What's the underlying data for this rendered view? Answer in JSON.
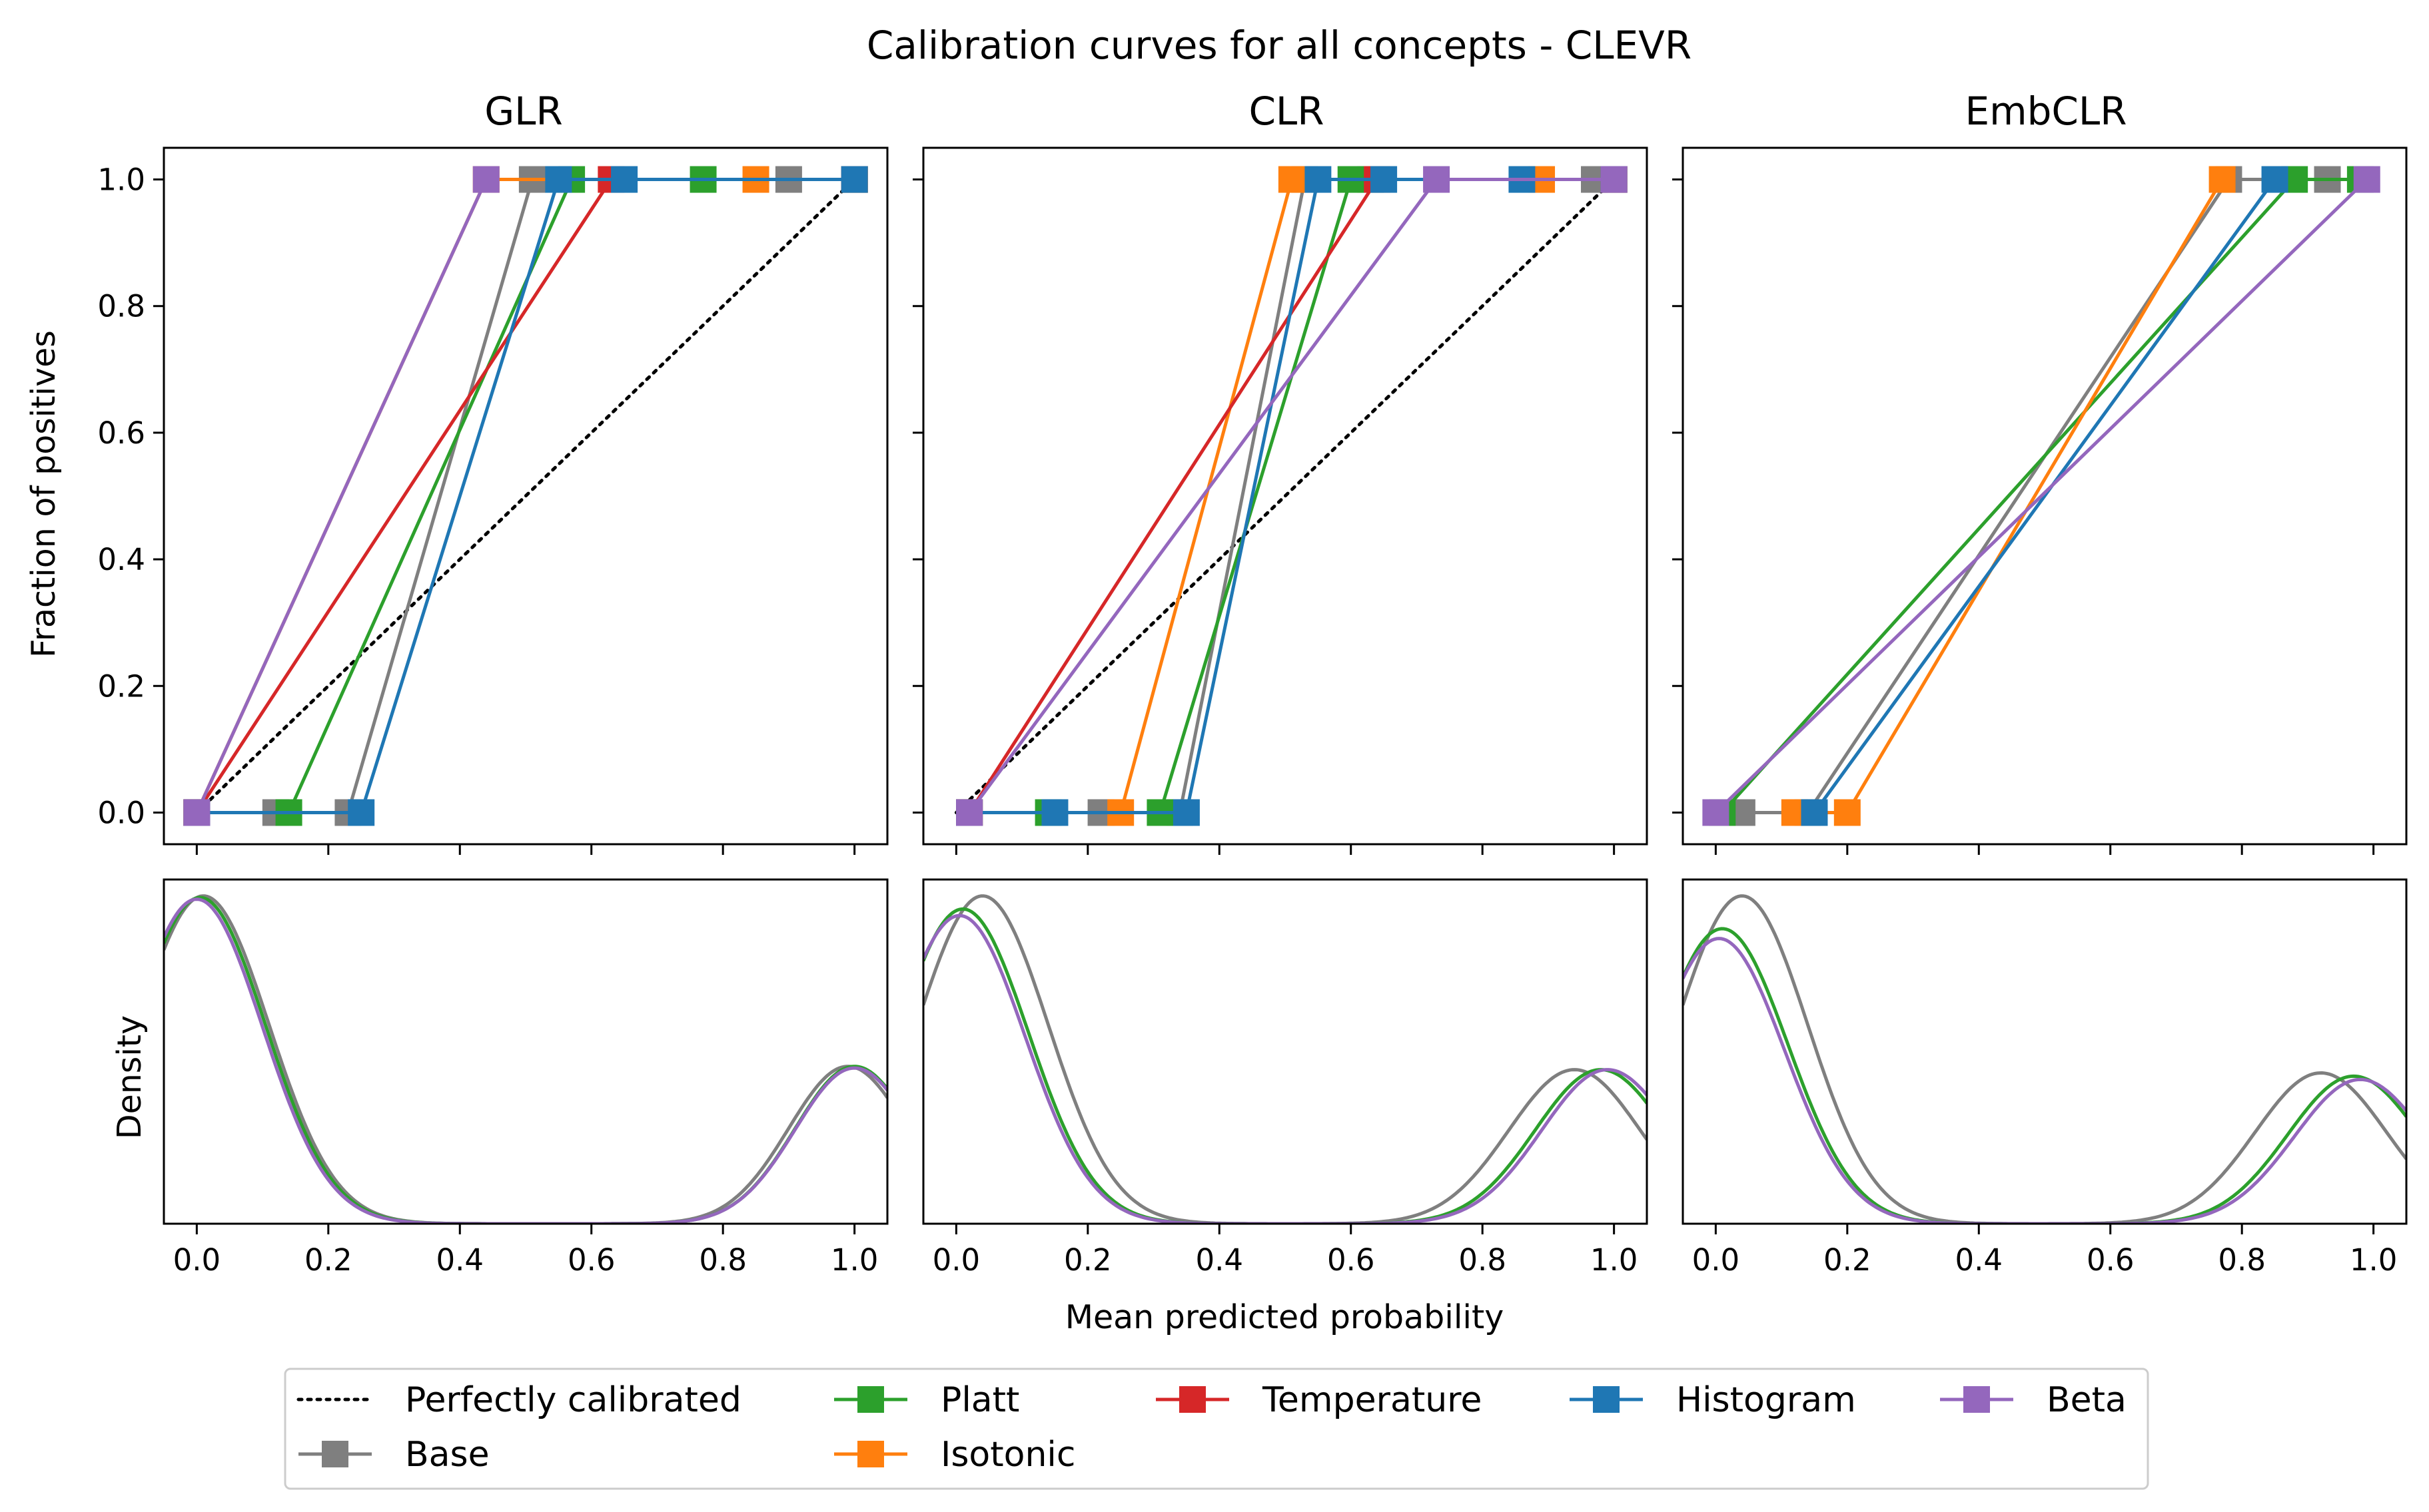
{
  "figure": {
    "title": "Calibration curves for all concepts - CLEVR",
    "xlabel": "Mean predicted probability",
    "ylabel_top": "Fraction of positives",
    "ylabel_bottom": "Density"
  },
  "legend": {
    "placement": "bottom-center",
    "entries": [
      {
        "id": "perfect",
        "label": "Perfectly calibrated",
        "color": "#000000",
        "style": "dotted",
        "marker": "none"
      },
      {
        "id": "base",
        "label": "Base",
        "color": "#7f7f7f",
        "style": "solid",
        "marker": "square"
      },
      {
        "id": "platt",
        "label": "Platt",
        "color": "#2ca02c",
        "style": "solid",
        "marker": "square"
      },
      {
        "id": "isotonic",
        "label": "Isotonic",
        "color": "#ff7f0e",
        "style": "solid",
        "marker": "square"
      },
      {
        "id": "temperature",
        "label": "Temperature",
        "color": "#d62728",
        "style": "solid",
        "marker": "square"
      },
      {
        "id": "histogram",
        "label": "Histogram",
        "color": "#1f77b4",
        "style": "solid",
        "marker": "square"
      },
      {
        "id": "beta",
        "label": "Beta",
        "color": "#9467bd",
        "style": "solid",
        "marker": "square"
      }
    ]
  },
  "chart_data": [
    {
      "type": "line",
      "title": "GLR",
      "xlabel": "Mean predicted probability",
      "ylabel": "Fraction of positives",
      "xlim": [
        -0.05,
        1.05
      ],
      "ylim": [
        -0.05,
        1.05
      ],
      "xticks": [
        "0.0",
        "0.2",
        "0.4",
        "0.6",
        "0.8",
        "1.0"
      ],
      "yticks": [
        "0.0",
        "0.2",
        "0.4",
        "0.6",
        "0.8",
        "1.0"
      ],
      "grid": false,
      "series": [
        {
          "name": "Perfectly calibrated",
          "color": "#000000",
          "style": "dotted",
          "x": [
            0,
            1
          ],
          "y": [
            0,
            1
          ],
          "markers": false
        },
        {
          "name": "Base",
          "color": "#7f7f7f",
          "x": [
            0.0,
            0.12,
            0.23,
            0.51,
            0.9,
            1.0
          ],
          "y": [
            0,
            0,
            0,
            1,
            1,
            1
          ]
        },
        {
          "name": "Platt",
          "color": "#2ca02c",
          "x": [
            0.0,
            0.14,
            0.57,
            0.77,
            1.0
          ],
          "y": [
            0,
            0,
            1,
            1,
            1
          ]
        },
        {
          "name": "Isotonic",
          "color": "#ff7f0e",
          "x": [
            0.0,
            0.44,
            0.85,
            1.0
          ],
          "y": [
            0,
            1,
            1,
            1
          ]
        },
        {
          "name": "Temperature",
          "color": "#d62728",
          "x": [
            0.0,
            0.63,
            1.0
          ],
          "y": [
            0,
            1,
            1
          ]
        },
        {
          "name": "Histogram",
          "color": "#1f77b4",
          "x": [
            0.0,
            0.25,
            0.55,
            0.65,
            1.0
          ],
          "y": [
            0,
            0,
            1,
            1,
            1
          ]
        },
        {
          "name": "Beta",
          "color": "#9467bd",
          "x": [
            0.0,
            0.44
          ],
          "y": [
            0,
            1
          ]
        }
      ]
    },
    {
      "type": "line",
      "title": "CLR",
      "xlim": [
        -0.05,
        1.05
      ],
      "ylim": [
        -0.05,
        1.05
      ],
      "xticks": [
        "0.0",
        "0.2",
        "0.4",
        "0.6",
        "0.8",
        "1.0"
      ],
      "grid": false,
      "series": [
        {
          "name": "Perfectly calibrated",
          "color": "#000000",
          "style": "dotted",
          "x": [
            0,
            1
          ],
          "y": [
            0,
            1
          ],
          "markers": false
        },
        {
          "name": "Base",
          "color": "#7f7f7f",
          "x": [
            0.02,
            0.22,
            0.34,
            0.53,
            0.97
          ],
          "y": [
            0,
            0,
            0,
            1,
            1
          ]
        },
        {
          "name": "Platt",
          "color": "#2ca02c",
          "x": [
            0.02,
            0.14,
            0.31,
            0.6,
            0.63,
            1.0
          ],
          "y": [
            0,
            0,
            0,
            1,
            1,
            1
          ]
        },
        {
          "name": "Isotonic",
          "color": "#ff7f0e",
          "x": [
            0.02,
            0.25,
            0.51,
            0.89,
            1.0
          ],
          "y": [
            0,
            0,
            1,
            1,
            1
          ]
        },
        {
          "name": "Temperature",
          "color": "#d62728",
          "x": [
            0.02,
            0.64,
            1.0
          ],
          "y": [
            0,
            1,
            1
          ]
        },
        {
          "name": "Histogram",
          "color": "#1f77b4",
          "x": [
            0.02,
            0.15,
            0.35,
            0.55,
            0.65,
            0.86,
            1.0
          ],
          "y": [
            0,
            0,
            0,
            1,
            1,
            1,
            1
          ]
        },
        {
          "name": "Beta",
          "color": "#9467bd",
          "x": [
            0.02,
            0.73,
            1.0
          ],
          "y": [
            0,
            1,
            1
          ]
        }
      ]
    },
    {
      "type": "line",
      "title": "EmbCLR",
      "xlim": [
        -0.05,
        1.05
      ],
      "ylim": [
        -0.05,
        1.05
      ],
      "xticks": [
        "0.0",
        "0.2",
        "0.4",
        "0.6",
        "0.8",
        "1.0"
      ],
      "grid": false,
      "series": [
        {
          "name": "Base",
          "color": "#7f7f7f",
          "x": [
            0.04,
            0.14,
            0.78,
            0.93
          ],
          "y": [
            0,
            0,
            1,
            1
          ]
        },
        {
          "name": "Platt",
          "color": "#2ca02c",
          "x": [
            0.01,
            0.88,
            0.98
          ],
          "y": [
            0,
            1,
            1
          ]
        },
        {
          "name": "Isotonic",
          "color": "#ff7f0e",
          "x": [
            0.12,
            0.2,
            0.77
          ],
          "y": [
            0,
            0,
            1
          ]
        },
        {
          "name": "Histogram",
          "color": "#1f77b4",
          "x": [
            0.15,
            0.85
          ],
          "y": [
            0,
            1
          ]
        },
        {
          "name": "Beta",
          "color": "#9467bd",
          "x": [
            0.0,
            0.99
          ],
          "y": [
            0,
            1
          ]
        }
      ]
    },
    {
      "type": "area",
      "subtype": "density",
      "ylabel": "Density",
      "xlabel": "",
      "xlim": [
        -0.05,
        1.05
      ],
      "ylim": [
        0,
        1.05
      ],
      "xticks": [
        "0.0",
        "0.2",
        "0.4",
        "0.6",
        "0.8",
        "1.0"
      ],
      "series": [
        {
          "name": "Base",
          "color": "#7f7f7f",
          "peak1_x": 0.01,
          "peak1_h": 1.0,
          "peak1_w": 0.1,
          "peak2_x": 0.99,
          "peak2_h": 0.48,
          "peak2_w": 0.09
        },
        {
          "name": "Platt",
          "color": "#2ca02c",
          "peak1_x": 0.005,
          "peak1_h": 0.995,
          "peak1_w": 0.1,
          "peak2_x": 1.0,
          "peak2_h": 0.48,
          "peak2_w": 0.09
        },
        {
          "name": "Beta",
          "color": "#9467bd",
          "peak1_x": 0.0,
          "peak1_h": 0.99,
          "peak1_w": 0.1,
          "peak2_x": 1.0,
          "peak2_h": 0.475,
          "peak2_w": 0.09
        }
      ]
    },
    {
      "type": "area",
      "subtype": "density",
      "xlabel": "Mean predicted probability",
      "xlim": [
        -0.05,
        1.05
      ],
      "ylim": [
        0,
        1.05
      ],
      "xticks": [
        "0.0",
        "0.2",
        "0.4",
        "0.6",
        "0.8",
        "1.0"
      ],
      "series": [
        {
          "name": "Base",
          "color": "#7f7f7f",
          "peak1_x": 0.04,
          "peak1_h": 1.0,
          "peak1_w": 0.1,
          "peak2_x": 0.94,
          "peak2_h": 0.47,
          "peak2_w": 0.1
        },
        {
          "name": "Platt",
          "color": "#2ca02c",
          "peak1_x": 0.01,
          "peak1_h": 0.96,
          "peak1_w": 0.1,
          "peak2_x": 0.98,
          "peak2_h": 0.47,
          "peak2_w": 0.1
        },
        {
          "name": "Beta",
          "color": "#9467bd",
          "peak1_x": 0.005,
          "peak1_h": 0.94,
          "peak1_w": 0.1,
          "peak2_x": 0.99,
          "peak2_h": 0.47,
          "peak2_w": 0.1
        }
      ]
    },
    {
      "type": "area",
      "subtype": "density",
      "xlim": [
        -0.05,
        1.05
      ],
      "ylim": [
        0,
        1.05
      ],
      "xticks": [
        "0.0",
        "0.2",
        "0.4",
        "0.6",
        "0.8",
        "1.0"
      ],
      "series": [
        {
          "name": "Base",
          "color": "#7f7f7f",
          "peak1_x": 0.04,
          "peak1_h": 1.0,
          "peak1_w": 0.1,
          "peak2_x": 0.92,
          "peak2_h": 0.46,
          "peak2_w": 0.1
        },
        {
          "name": "Platt",
          "color": "#2ca02c",
          "peak1_x": 0.01,
          "peak1_h": 0.9,
          "peak1_w": 0.1,
          "peak2_x": 0.97,
          "peak2_h": 0.45,
          "peak2_w": 0.1
        },
        {
          "name": "Beta",
          "color": "#9467bd",
          "peak1_x": 0.005,
          "peak1_h": 0.87,
          "peak1_w": 0.1,
          "peak2_x": 0.98,
          "peak2_h": 0.44,
          "peak2_w": 0.1
        }
      ]
    }
  ]
}
